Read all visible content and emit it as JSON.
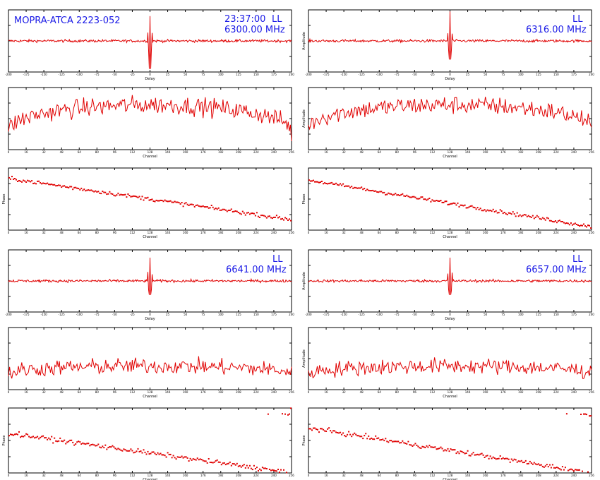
{
  "header": {
    "source": "MOPRA-ATCA 2223-052",
    "time": "23:37:00",
    "blocks": [
      {
        "pol": "LL",
        "freq_top_left": "6300.00 MHz",
        "freq_top_right": "6316.00 MHz"
      },
      {
        "pol": "LL",
        "freq_top_left": "6641.00 MHz",
        "freq_top_right": "6657.00 MHz"
      }
    ]
  },
  "colors": {
    "trace": "#e00000",
    "header_text": "#1a1ae6",
    "axes": "#000000",
    "background": "#ffffff"
  },
  "chart_data": [
    {
      "panel": "delay-6300",
      "type": "line",
      "xlabel": "Delay",
      "ylabel": "",
      "xlim": [
        -200,
        200
      ],
      "ylim": [
        -1,
        1
      ],
      "grid": false,
      "description_peak": {
        "x": 0,
        "y_max": 0.8,
        "y_min": -0.9
      }
    },
    {
      "panel": "delay-6316",
      "type": "line",
      "xlabel": "Delay",
      "ylabel": "Amplitude",
      "xlim": [
        -200,
        200
      ],
      "ylim": [
        -1,
        1
      ],
      "grid": false,
      "description_peak": {
        "x": 0,
        "y_max": 0.95,
        "y_min": -0.6
      }
    },
    {
      "panel": "amp-6300",
      "type": "line",
      "xlabel": "Channel",
      "ylabel": "",
      "xlim": [
        0,
        256
      ],
      "ylim": [
        0,
        5
      ],
      "grid": false,
      "envelope": {
        "edge": 1.2,
        "center": 3.6,
        "noise": 0.7
      }
    },
    {
      "panel": "amp-6316",
      "type": "line",
      "xlabel": "Channel",
      "ylabel": "Amplitude",
      "xlim": [
        0,
        256
      ],
      "ylim": [
        0,
        5
      ],
      "grid": false,
      "envelope": {
        "edge": 1.5,
        "center": 3.6,
        "noise": 0.7
      }
    },
    {
      "panel": "phase-6300",
      "type": "scatter",
      "xlabel": "Channel",
      "ylabel": "Phase",
      "xlim": [
        0,
        256
      ],
      "ylim": [
        -180,
        180
      ],
      "grid": false,
      "trend": {
        "start": 120,
        "end": -120,
        "scatter": 10
      }
    },
    {
      "panel": "phase-6316",
      "type": "scatter",
      "xlabel": "Channel",
      "ylabel": "Phase",
      "xlim": [
        0,
        256
      ],
      "ylim": [
        -180,
        180
      ],
      "grid": false,
      "trend": {
        "start": 110,
        "end": -160,
        "scatter": 10
      }
    },
    {
      "panel": "delay-6641",
      "type": "line",
      "xlabel": "Delay",
      "ylabel": "",
      "xlim": [
        -200,
        200
      ],
      "ylim": [
        -1,
        1
      ],
      "grid": false,
      "description_peak": {
        "x": 0,
        "y_max": 0.75,
        "y_min": -0.45
      }
    },
    {
      "panel": "delay-6657",
      "type": "line",
      "xlabel": "Delay",
      "ylabel": "Amplitude",
      "xlim": [
        -200,
        200
      ],
      "ylim": [
        -1,
        1
      ],
      "grid": false,
      "description_peak": {
        "x": 0,
        "y_max": 0.75,
        "y_min": -0.45
      }
    },
    {
      "panel": "amp-6641",
      "type": "line",
      "xlabel": "Channel",
      "ylabel": "",
      "xlim": [
        0,
        256
      ],
      "ylim": [
        0,
        5
      ],
      "grid": false,
      "envelope": {
        "edge": 1.2,
        "center": 1.9,
        "noise": 0.6
      }
    },
    {
      "panel": "amp-6657",
      "type": "line",
      "xlabel": "Channel",
      "ylabel": "Amplitude",
      "xlim": [
        0,
        256
      ],
      "ylim": [
        0,
        5
      ],
      "grid": false,
      "envelope": {
        "edge": 1.2,
        "center": 1.9,
        "noise": 0.6
      }
    },
    {
      "panel": "phase-6641",
      "type": "scatter",
      "xlabel": "Channel",
      "ylabel": "Phase",
      "xlim": [
        0,
        256
      ],
      "ylim": [
        -180,
        180
      ],
      "grid": false,
      "trend": {
        "start": 40,
        "end": -180,
        "wrap_at": -180,
        "scatter": 12
      }
    },
    {
      "panel": "phase-6657",
      "type": "scatter",
      "xlabel": "Channel",
      "ylabel": "Phase",
      "xlim": [
        0,
        256
      ],
      "ylim": [
        -180,
        180
      ],
      "grid": false,
      "trend": {
        "start": 70,
        "end": -180,
        "wrap_at": -180,
        "scatter": 12
      }
    }
  ]
}
